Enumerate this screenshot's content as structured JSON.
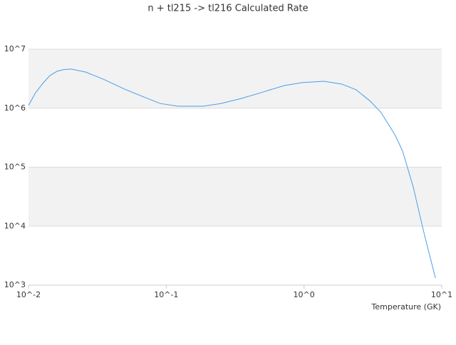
{
  "chart_data": {
    "type": "line",
    "title": "n + tl215 -> tl216 Calculated Rate",
    "x_label": "Temperature (GK)",
    "log_x": true,
    "log_y": true,
    "bands": true,
    "xlim": [
      0.01,
      10
    ],
    "ylim": [
      1000,
      10000000
    ],
    "xticks": [
      {
        "value": 0.01,
        "label": "10^-2"
      },
      {
        "value": 0.1,
        "label": "10^-1"
      },
      {
        "value": 1,
        "label": "10^0"
      },
      {
        "value": 10,
        "label": "10^1"
      }
    ],
    "yticks": [
      {
        "value": 1000,
        "label": "10^3"
      },
      {
        "value": 10000,
        "label": "10^4"
      },
      {
        "value": 100000,
        "label": "10^5"
      },
      {
        "value": 1000000,
        "label": "10^6"
      },
      {
        "value": 10000000,
        "label": "10^7"
      }
    ],
    "x": [
      0.01,
      0.01126,
      0.0127,
      0.0143,
      0.0161,
      0.0181,
      0.0204,
      0.0259,
      0.0349,
      0.0499,
      0.0672,
      0.0904,
      0.122,
      0.185,
      0.249,
      0.355,
      0.505,
      0.72,
      0.97,
      1.39,
      1.88,
      2.39,
      3.03,
      3.63,
      4.6,
      5.2,
      6.2,
      7.5,
      9.0
    ],
    "series": [
      {
        "color": "#4a9ee8",
        "values": [
          1110000,
          1830000,
          2630000,
          3570000,
          4220000,
          4530000,
          4600000,
          4100000,
          3100000,
          2100000,
          1580000,
          1200000,
          1080000,
          1080000,
          1200000,
          1470000,
          1880000,
          2420000,
          2710000,
          2860000,
          2560000,
          2050000,
          1310000,
          840000,
          345000,
          187000,
          46600,
          7000,
          1320
        ]
      }
    ]
  }
}
